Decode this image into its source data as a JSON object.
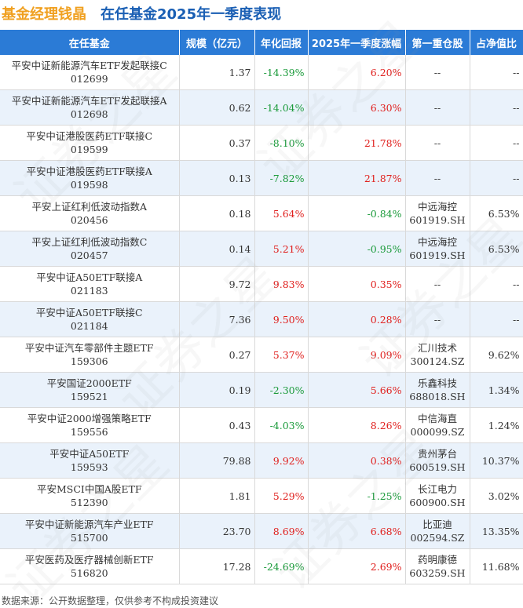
{
  "header": {
    "title_part1": "基金经理钱晶",
    "title_part2": "在任基金2025年一季度表现"
  },
  "chart_data": {
    "type": "table",
    "columns": [
      "在任基金",
      "规模（亿元）",
      "年化回报",
      "2025年一季度涨幅",
      "第一重仓股",
      "占净值比"
    ],
    "rows": [
      {
        "name": "平安中证新能源汽车ETF发起联接C",
        "code": "012699",
        "scale": "1.37",
        "annual": "-14.39%",
        "q1": "6.20%",
        "stock": "--",
        "stock_code": "",
        "ratio": "--"
      },
      {
        "name": "平安中证新能源汽车ETF发起联接A",
        "code": "012698",
        "scale": "0.62",
        "annual": "-14.04%",
        "q1": "6.30%",
        "stock": "--",
        "stock_code": "",
        "ratio": "--"
      },
      {
        "name": "平安中证港股医药ETF联接C",
        "code": "019599",
        "scale": "0.37",
        "annual": "-8.10%",
        "q1": "21.78%",
        "stock": "--",
        "stock_code": "",
        "ratio": "--"
      },
      {
        "name": "平安中证港股医药ETF联接A",
        "code": "019598",
        "scale": "0.13",
        "annual": "-7.82%",
        "q1": "21.87%",
        "stock": "--",
        "stock_code": "",
        "ratio": "--"
      },
      {
        "name": "平安上证红利低波动指数A",
        "code": "020456",
        "scale": "0.18",
        "annual": "5.64%",
        "q1": "-0.84%",
        "stock": "中远海控",
        "stock_code": "601919.SH",
        "ratio": "6.53%"
      },
      {
        "name": "平安上证红利低波动指数C",
        "code": "020457",
        "scale": "0.14",
        "annual": "5.21%",
        "q1": "-0.95%",
        "stock": "中远海控",
        "stock_code": "601919.SH",
        "ratio": "6.53%"
      },
      {
        "name": "平安中证A50ETF联接A",
        "code": "021183",
        "scale": "9.72",
        "annual": "9.83%",
        "q1": "0.35%",
        "stock": "--",
        "stock_code": "",
        "ratio": "--"
      },
      {
        "name": "平安中证A50ETF联接C",
        "code": "021184",
        "scale": "7.36",
        "annual": "9.50%",
        "q1": "0.28%",
        "stock": "--",
        "stock_code": "",
        "ratio": "--"
      },
      {
        "name": "平安中证汽车零部件主题ETF",
        "code": "159306",
        "scale": "0.27",
        "annual": "5.37%",
        "q1": "9.09%",
        "stock": "汇川技术",
        "stock_code": "300124.SZ",
        "ratio": "9.62%"
      },
      {
        "name": "平安国证2000ETF",
        "code": "159521",
        "scale": "0.19",
        "annual": "-2.30%",
        "q1": "5.66%",
        "stock": "乐鑫科技",
        "stock_code": "688018.SH",
        "ratio": "1.34%"
      },
      {
        "name": "平安中证2000增强策略ETF",
        "code": "159556",
        "scale": "0.43",
        "annual": "-4.03%",
        "q1": "8.26%",
        "stock": "中信海直",
        "stock_code": "000099.SZ",
        "ratio": "1.24%"
      },
      {
        "name": "平安中证A50ETF",
        "code": "159593",
        "scale": "79.88",
        "annual": "9.92%",
        "q1": "0.38%",
        "stock": "贵州茅台",
        "stock_code": "600519.SH",
        "ratio": "10.37%"
      },
      {
        "name": "平安MSCI中国A股ETF",
        "code": "512390",
        "scale": "1.81",
        "annual": "5.29%",
        "q1": "-1.25%",
        "stock": "长江电力",
        "stock_code": "600900.SH",
        "ratio": "3.02%"
      },
      {
        "name": "平安中证新能源汽车产业ETF",
        "code": "515700",
        "scale": "23.70",
        "annual": "8.69%",
        "q1": "6.68%",
        "stock": "比亚迪",
        "stock_code": "002594.SZ",
        "ratio": "13.35%"
      },
      {
        "name": "平安医药及医疗器械创新ETF",
        "code": "516820",
        "scale": "17.28",
        "annual": "-24.69%",
        "q1": "2.69%",
        "stock": "药明康德",
        "stock_code": "603259.SH",
        "ratio": "11.68%"
      }
    ]
  },
  "footer": {
    "source": "数据来源：公开数据整理，仅供参考不构成投资建议"
  },
  "colors": {
    "header_bg": "#2b7bd6",
    "title_orange": "#f0a020",
    "title_blue": "#1a5fb4",
    "positive": "#e0201e",
    "negative": "#1a9a3a",
    "alt_row": "#eaf2fb"
  }
}
